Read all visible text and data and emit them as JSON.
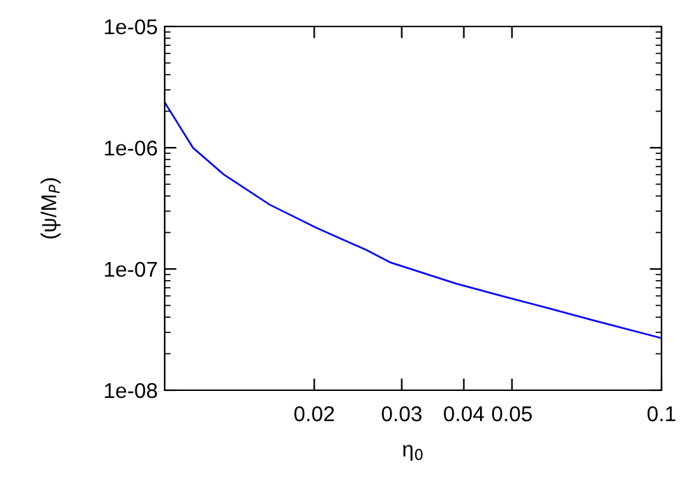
{
  "chart_data": {
    "type": "line",
    "xlabel": "η$_{0}$",
    "ylabel": "(ψ/M$_{P}$)",
    "log": "xy",
    "grid": false,
    "legend": false,
    "marker": "none",
    "line_style": "solid",
    "xlim": [
      0.01,
      0.1
    ],
    "ylim": [
      1e-08,
      1e-05
    ],
    "xticks": [
      0.02,
      0.03,
      0.04,
      0.05,
      0.1
    ],
    "yticks": [
      {
        "value": 1e-08,
        "label": "1e-08"
      },
      {
        "value": 1e-07,
        "label": "1e-07"
      },
      {
        "value": 1e-06,
        "label": "1e-06"
      },
      {
        "value": 1e-05,
        "label": "1e-05"
      }
    ],
    "series": [
      {
        "color": "#0000ff",
        "x": [
          0.01,
          0.0114,
          0.01314,
          0.01627,
          0.02023,
          0.02541,
          0.0285,
          0.03861,
          0.04786,
          0.05935,
          0.07362,
          0.1
        ],
        "values": [
          2.37e-06,
          1e-06,
          6.03e-07,
          3.39e-07,
          2.18e-07,
          1.44e-07,
          1.13e-07,
          7.57e-08,
          5.97e-08,
          4.73e-08,
          3.73e-08,
          2.69e-08
        ]
      }
    ]
  }
}
